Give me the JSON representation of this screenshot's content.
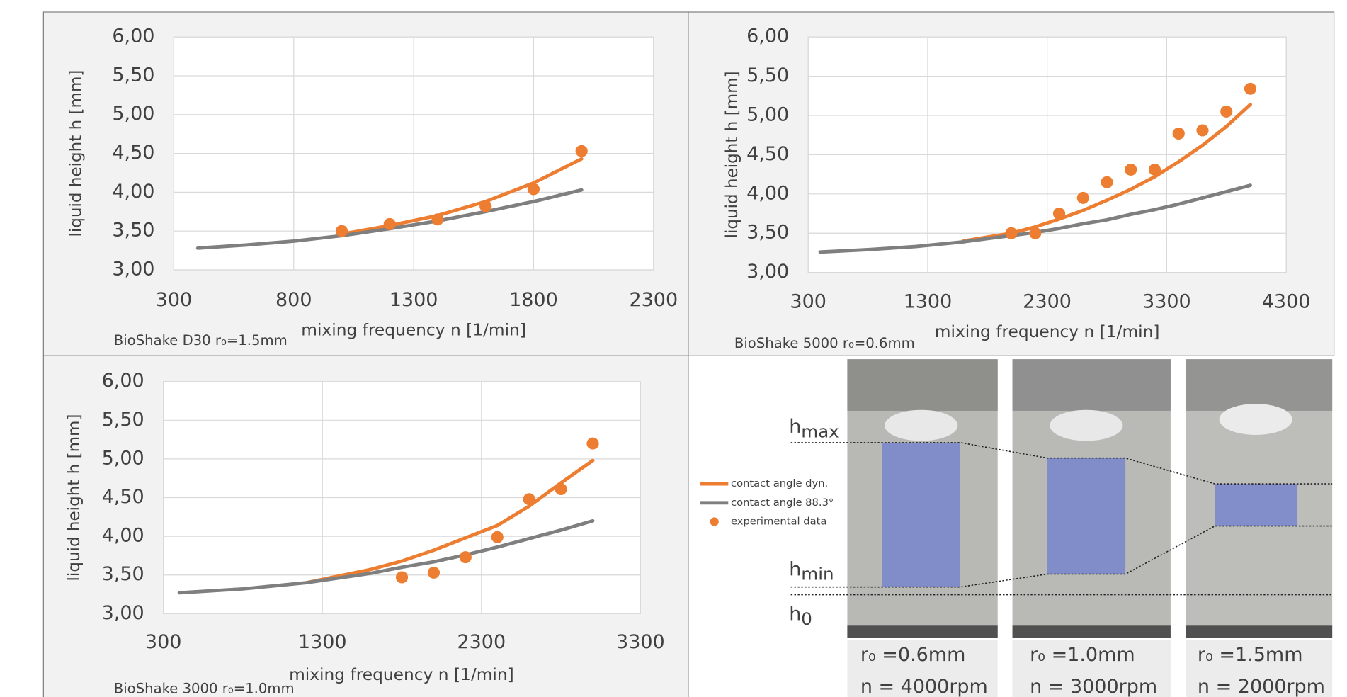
{
  "chart_data": [
    {
      "type": "line",
      "subtitle": "BioShake D30 r₀=1.5mm",
      "x_label": "mixing frequency n [1/min]",
      "y_label": "liquid height h [mm]",
      "x": [
        400,
        600,
        800,
        1000,
        1200,
        1400,
        1600,
        1800,
        2000
      ],
      "series": [
        {
          "name": "contact angle dyn.",
          "color": "#ed7d31",
          "mode": "lines",
          "values": [
            null,
            null,
            null,
            3.46,
            3.57,
            3.7,
            3.88,
            4.12,
            4.43
          ]
        },
        {
          "name": "contact angle 88.3°",
          "color": "#7f7f7f",
          "mode": "lines",
          "values": [
            3.28,
            3.32,
            3.37,
            3.44,
            3.53,
            3.63,
            3.75,
            3.88,
            4.03
          ]
        },
        {
          "name": "experimental data",
          "color": "#ed7d31",
          "mode": "markers",
          "values": [
            null,
            null,
            null,
            3.5,
            3.59,
            3.65,
            3.82,
            4.04,
            4.53
          ]
        }
      ],
      "xlim": [
        300,
        2300
      ],
      "xticks": [
        300,
        800,
        1300,
        1800,
        2300
      ],
      "ylim": [
        3,
        6
      ],
      "yticks": [
        {
          "value": 3,
          "label": "3,00"
        },
        {
          "value": 3.5,
          "label": "3,50"
        },
        {
          "value": 4,
          "label": "4,00"
        },
        {
          "value": 4.5,
          "label": "4,50"
        },
        {
          "value": 5,
          "label": "5,00"
        },
        {
          "value": 5.5,
          "label": "5,50"
        },
        {
          "value": 6,
          "label": "6,00"
        }
      ],
      "grid": true
    },
    {
      "type": "line",
      "subtitle": "BioShake 5000 r₀=0.6mm",
      "x_label": "mixing frequency n [1/min]",
      "y_label": "liquid height h [mm]",
      "x": [
        400,
        800,
        1200,
        1600,
        2000,
        2200,
        2400,
        2600,
        2800,
        3000,
        3200,
        3400,
        3600,
        3800,
        4000
      ],
      "series": [
        {
          "name": "contact angle dyn.",
          "color": "#ed7d31",
          "mode": "lines",
          "values": [
            null,
            null,
            null,
            3.4,
            3.5,
            3.58,
            3.68,
            3.79,
            3.92,
            4.06,
            4.22,
            4.41,
            4.62,
            4.86,
            5.14
          ]
        },
        {
          "name": "contact angle 88.3°",
          "color": "#7f7f7f",
          "mode": "lines",
          "values": [
            3.26,
            3.29,
            3.33,
            3.39,
            3.47,
            3.51,
            3.56,
            3.62,
            3.67,
            3.74,
            3.8,
            3.87,
            3.95,
            4.03,
            4.11
          ]
        },
        {
          "name": "experimental data",
          "color": "#ed7d31",
          "mode": "markers",
          "values": [
            null,
            null,
            null,
            null,
            3.5,
            3.5,
            3.75,
            3.95,
            4.15,
            4.31,
            4.31,
            4.77,
            4.81,
            5.05,
            5.34
          ]
        }
      ],
      "xlim": [
        300,
        4300
      ],
      "xticks": [
        300,
        1300,
        2300,
        3300,
        4300
      ],
      "ylim": [
        3,
        6
      ],
      "yticks": [
        {
          "value": 3,
          "label": "3,00"
        },
        {
          "value": 3.5,
          "label": "3,50"
        },
        {
          "value": 4,
          "label": "4,00"
        },
        {
          "value": 4.5,
          "label": "4,50"
        },
        {
          "value": 5,
          "label": "5,00"
        },
        {
          "value": 5.5,
          "label": "5,50"
        },
        {
          "value": 6,
          "label": "6,00"
        }
      ],
      "grid": true
    },
    {
      "type": "line",
      "subtitle": "BioShake 3000 r₀=1.0mm",
      "x_label": "mixing frequency n [1/min]",
      "y_label": "liquid height h [mm]",
      "x": [
        400,
        800,
        1200,
        1600,
        1800,
        2000,
        2200,
        2400,
        2600,
        2800,
        3000
      ],
      "series": [
        {
          "name": "contact angle dyn.",
          "color": "#ed7d31",
          "mode": "lines",
          "values": [
            null,
            null,
            3.4,
            3.57,
            3.68,
            3.82,
            3.98,
            4.14,
            4.39,
            4.69,
            4.98
          ]
        },
        {
          "name": "contact angle 88.3°",
          "color": "#7f7f7f",
          "mode": "lines",
          "values": [
            3.27,
            3.32,
            3.4,
            3.52,
            3.6,
            3.67,
            3.76,
            3.86,
            3.97,
            4.08,
            4.2
          ]
        },
        {
          "name": "experimental data",
          "color": "#ed7d31",
          "mode": "markers",
          "values": [
            null,
            null,
            null,
            null,
            3.47,
            3.53,
            3.73,
            3.99,
            4.48,
            4.61,
            5.2
          ]
        }
      ],
      "xlim": [
        300,
        3300
      ],
      "xticks": [
        300,
        1300,
        2300,
        3300
      ],
      "ylim": [
        3,
        6
      ],
      "yticks": [
        {
          "value": 3,
          "label": "3,00"
        },
        {
          "value": 3.5,
          "label": "3,50"
        },
        {
          "value": 4,
          "label": "4,00"
        },
        {
          "value": 4.5,
          "label": "4,50"
        },
        {
          "value": 5,
          "label": "5,00"
        },
        {
          "value": 5.5,
          "label": "5,50"
        },
        {
          "value": 6,
          "label": "6,00"
        }
      ],
      "grid": true
    }
  ],
  "photo_panel": {
    "levels": [
      {
        "base": "h",
        "sub": "max"
      },
      {
        "base": "h",
        "sub": "min"
      },
      {
        "base": "h",
        "sub": "0"
      }
    ],
    "captions": [
      {
        "radius": "r₀ =0.6mm",
        "speed": "n = 4000rpm"
      },
      {
        "radius": "r₀ =1.0mm",
        "speed": "n = 3000rpm"
      },
      {
        "radius": "r₀ =1.5mm",
        "speed": "n = 2000rpm"
      }
    ]
  }
}
